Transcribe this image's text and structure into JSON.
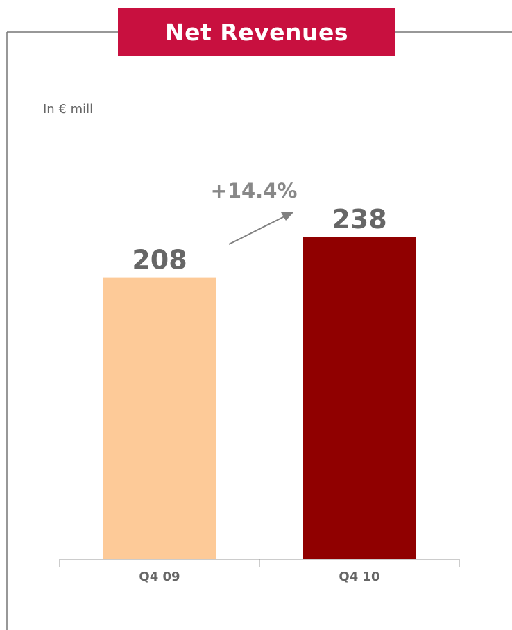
{
  "chart_data": {
    "type": "bar",
    "title": "Net Revenues",
    "subtitle": "In € mill",
    "categories": [
      "Q4 09",
      "Q4 10"
    ],
    "values": [
      208,
      238
    ],
    "data_labels": [
      "208",
      "238"
    ],
    "bar_colors": [
      "#fdca98",
      "#900000"
    ],
    "annotation": "+14.4%",
    "ylim": [
      0,
      238
    ],
    "xlabel": "",
    "ylabel": "",
    "grid": false
  },
  "colors": {
    "title_background": "#c8103f",
    "frame": "#777777",
    "axis": "#999999",
    "text": "#666666"
  }
}
